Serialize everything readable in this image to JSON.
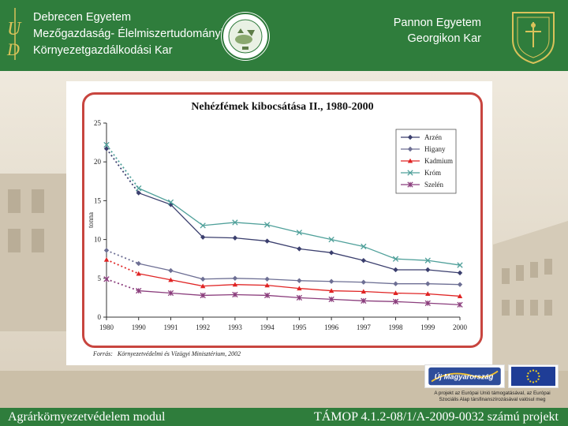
{
  "header": {
    "left_lines": [
      "Debrecen Egyetem",
      "Mezőgazdaság- Élelmiszertudományi és",
      "Környezetgazdálkodási Kar"
    ],
    "right_lines": [
      "Pannon Egyetem",
      "Georgikon Kar"
    ],
    "left_logo_icon": "ud-monogram-icon",
    "seal_icon": "agricultural-faculty-seal-icon",
    "crest_icon": "georgikon-crest-icon"
  },
  "chart_data": {
    "type": "line",
    "title": "Nehézfémek kibocsátása II., 1980-2000",
    "ylabel": "tonna",
    "xlabel": "",
    "categories": [
      "1980",
      "1990",
      "1991",
      "1992",
      "1993",
      "1994",
      "1995",
      "1996",
      "1997",
      "1998",
      "1999",
      "2000"
    ],
    "ylim": [
      0,
      25
    ],
    "yticks": [
      0,
      5,
      10,
      15,
      20,
      25
    ],
    "grid": false,
    "legend_position": "top-right",
    "note": "dotted segment between 1980 and 1990",
    "series": [
      {
        "name": "Arzén",
        "color": "#3b3f6e",
        "marker": "diamond",
        "values": [
          21.7,
          16.0,
          14.5,
          10.3,
          10.2,
          9.8,
          8.8,
          8.3,
          7.3,
          6.1,
          6.1,
          5.7
        ]
      },
      {
        "name": "Higany",
        "color": "#6d6f94",
        "marker": "diamond",
        "values": [
          8.6,
          6.9,
          6.0,
          4.9,
          5.0,
          4.9,
          4.7,
          4.6,
          4.5,
          4.3,
          4.3,
          4.2
        ]
      },
      {
        "name": "Kadmium",
        "color": "#e02424",
        "marker": "triangle",
        "values": [
          7.4,
          5.6,
          4.8,
          4.0,
          4.2,
          4.1,
          3.7,
          3.4,
          3.3,
          3.1,
          3.0,
          2.7
        ]
      },
      {
        "name": "Króm",
        "color": "#4fa09a",
        "marker": "x",
        "values": [
          22.2,
          16.6,
          14.8,
          11.8,
          12.2,
          11.9,
          10.9,
          10.0,
          9.1,
          7.5,
          7.3,
          6.7
        ]
      },
      {
        "name": "Szelén",
        "color": "#8b3e7d",
        "marker": "star",
        "values": [
          4.9,
          3.4,
          3.1,
          2.8,
          2.9,
          2.8,
          2.5,
          2.3,
          2.1,
          2.0,
          1.8,
          1.6
        ]
      }
    ]
  },
  "source": {
    "label": "Forrás:",
    "text": "Környezetvédelmi és Vízügyi Minisztérium, 2002"
  },
  "eu": {
    "umft_logo_text": "Új Magyarország",
    "note_lines": [
      "A projekt az Európai Unió támogatásával, az Európai",
      "Szociális Alap társfinanszírozásával valósul meg"
    ],
    "flag_icon": "eu-flag-icon"
  },
  "footer": {
    "left": "Agrárkörnyezetvédelem modul",
    "right": "TÁMOP 4.1.2-08/1/A-2009-0032 számú projekt"
  },
  "colors": {
    "header_green": "#2f7d3c",
    "frame_red": "#c8453f"
  }
}
